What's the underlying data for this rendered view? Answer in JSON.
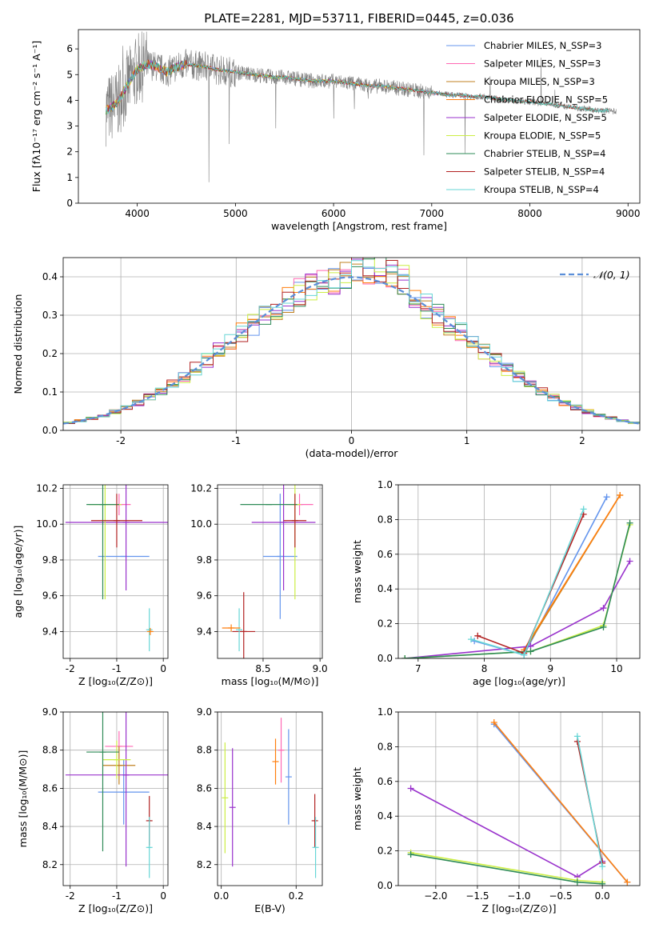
{
  "chart_data": [
    {
      "id": "spectrum",
      "type": "line",
      "title": "PLATE=2281, MJD=53711, FIBERID=0445, z=0.036",
      "xlabel": "wavelength [Angstrom, rest frame]",
      "ylabel": "Flux [fλ10⁻¹⁷ erg cm⁻² s⁻¹ A⁻¹]",
      "xlim": [
        3400,
        9120
      ],
      "ylim": [
        0,
        6.75
      ],
      "xticks": [
        4000,
        5000,
        6000,
        7000,
        8000,
        9000
      ],
      "yticks": [
        0,
        1,
        2,
        3,
        4,
        5,
        6
      ],
      "grid": false,
      "legend_position": "top-right",
      "data_series": {
        "name": "data",
        "color": "#808080",
        "x": [
          3680,
          3800,
          3900,
          4000,
          4100,
          4200,
          4300,
          4400,
          4500,
          4600,
          4700,
          4800,
          4900,
          5000,
          5100,
          5200,
          5300,
          5400,
          5500,
          5600,
          5700,
          5800,
          5900,
          6000,
          6100,
          6200,
          6300,
          6400,
          6500,
          6600,
          6700,
          6800,
          6900,
          7000,
          7100,
          7200,
          7300,
          7400,
          7500,
          7600,
          7700,
          7800,
          7900,
          8000,
          8100,
          8200,
          8300,
          8400,
          8500,
          8600,
          8700,
          8800,
          8880
        ],
        "y": [
          3.6,
          3.9,
          4.6,
          5.2,
          5.4,
          5.3,
          5.1,
          5.3,
          5.4,
          5.35,
          5.3,
          5.2,
          5.15,
          5.1,
          5.05,
          5.0,
          4.95,
          4.9,
          4.9,
          4.85,
          4.8,
          4.75,
          4.75,
          4.75,
          4.7,
          4.65,
          4.6,
          4.55,
          4.55,
          4.5,
          4.45,
          4.4,
          4.35,
          4.3,
          4.25,
          4.2,
          4.2,
          4.15,
          4.15,
          4.1,
          4.05,
          4.0,
          3.95,
          3.95,
          3.9,
          3.85,
          3.8,
          3.75,
          3.7,
          3.65,
          3.6,
          3.6,
          3.55
        ]
      },
      "series": [
        {
          "name": "Chabrier MILES, N_SSP=3",
          "color": "#6495ed",
          "xmax": 7420
        },
        {
          "name": "Salpeter MILES, N_SSP=3",
          "color": "#ff69b4",
          "xmax": 7420
        },
        {
          "name": "Kroupa MILES, N_SSP=3",
          "color": "#c08020",
          "xmax": 7420
        },
        {
          "name": "Chabrier ELODIE, N_SSP=5",
          "color": "#ff7f0e",
          "xmax": 6800
        },
        {
          "name": "Salpeter ELODIE, N_SSP=5",
          "color": "#9932cc",
          "xmax": 6800
        },
        {
          "name": "Kroupa ELODIE, N_SSP=5",
          "color": "#ccee44",
          "xmax": 6800
        },
        {
          "name": "Chabrier STELIB, N_SSP=4",
          "color": "#2e8b57",
          "xmax": 8800
        },
        {
          "name": "Salpeter STELIB, N_SSP=4",
          "color": "#b22222",
          "xmax": 8800
        },
        {
          "name": "Kroupa STELIB, N_SSP=4",
          "color": "#66d6d6",
          "xmax": 8800
        }
      ]
    },
    {
      "id": "residuals",
      "type": "bar",
      "xlabel": "(data-model)/error",
      "ylabel": "Normed distribution",
      "xlim": [
        -2.5,
        2.5
      ],
      "ylim": [
        0,
        0.45
      ],
      "xticks": [
        -2,
        -1,
        0,
        1,
        2
      ],
      "yticks": [
        0.0,
        0.1,
        0.2,
        0.3,
        0.4
      ],
      "grid": true,
      "legend_position": "top-right",
      "reference": {
        "name": "𝒩(0, 1)",
        "color": "#5b8fd9",
        "style": "dashed"
      },
      "bin_width": 0.1,
      "histogram_approx": true
    },
    {
      "id": "age_vs_Z",
      "type": "scatter",
      "xlabel": "Z [log₁₀(Z/Z⊙)]",
      "ylabel": "age  [log₁₀(age/yr)]",
      "xlim": [
        -2.15,
        0.1
      ],
      "ylim": [
        9.25,
        10.22
      ],
      "xticks": [
        -2,
        -1,
        0
      ],
      "yticks": [
        9.4,
        9.6,
        9.8,
        10.0,
        10.2
      ],
      "grid": true,
      "points": [
        {
          "model": "Chabrier MILES",
          "x": -0.85,
          "y": 9.82,
          "xerr": 0.55,
          "yerr": 0.0
        },
        {
          "model": "Salpeter MILES",
          "x": -0.95,
          "y": 10.11,
          "xerr": 0.25,
          "yerr": 0.06
        },
        {
          "model": "Salpeter ELODIE",
          "x": -0.8,
          "y": 10.01,
          "xerr": 1.3,
          "yerr": 0.38
        },
        {
          "model": "Kroupa ELODIE",
          "x": -1.25,
          "y": 10.11,
          "xerr": 0.35,
          "yerr": 0.53
        },
        {
          "model": "Chabrier STELIB",
          "x": -1.3,
          "y": 10.11,
          "xerr": 0.35,
          "yerr": 0.53
        },
        {
          "model": "Salpeter STELIB",
          "x": -1.0,
          "y": 10.02,
          "xerr": 0.55,
          "yerr": 0.15
        },
        {
          "model": "Kroupa STELIB",
          "x": -0.3,
          "y": 9.41,
          "xerr": 0.03,
          "yerr": 0.12
        },
        {
          "model": "Chabrier ELODIE",
          "x": -0.28,
          "y": 9.4,
          "xerr": 0.03,
          "yerr": 0.02
        }
      ]
    },
    {
      "id": "age_vs_mass",
      "type": "scatter",
      "xlabel": "mass [log₁₀(M/M⊙)]",
      "ylabel": "",
      "xlim": [
        8.1,
        9.02
      ],
      "ylim": [
        9.25,
        10.22
      ],
      "xticks": [
        8.5,
        9.0
      ],
      "yticks": [
        9.4,
        9.6,
        9.8,
        10.0,
        10.2
      ],
      "grid": true,
      "points": [
        {
          "model": "Chabrier MILES",
          "x": 8.65,
          "y": 9.82,
          "xerr": 0.15,
          "yerr": 0.35
        },
        {
          "model": "Salpeter MILES",
          "x": 8.82,
          "y": 10.11,
          "xerr": 0.12,
          "yerr": 0.06
        },
        {
          "model": "Salpeter ELODIE",
          "x": 8.68,
          "y": 10.01,
          "xerr": 0.28,
          "yerr": 0.38
        },
        {
          "model": "Kroupa ELODIE",
          "x": 8.78,
          "y": 10.11,
          "xerr": 0.05,
          "yerr": 0.53
        },
        {
          "model": "Chabrier STELIB",
          "x": 8.55,
          "y": 10.11,
          "xerr": 0.25,
          "yerr": 0.0
        },
        {
          "model": "Salpeter STELIB",
          "x": 8.78,
          "y": 10.02,
          "xerr": 0.1,
          "yerr": 0.15
        },
        {
          "model": "Salpeter STELIB (low)",
          "x": 8.33,
          "y": 9.4,
          "xerr": 0.1,
          "yerr": 0.22
        },
        {
          "model": "Kroupa STELIB",
          "x": 8.29,
          "y": 9.41,
          "xerr": 0.0,
          "yerr": 0.12
        },
        {
          "model": "Chabrier ELODIE",
          "x": 8.22,
          "y": 9.42,
          "xerr": 0.08,
          "yerr": 0.02
        }
      ]
    },
    {
      "id": "massweight_vs_age",
      "type": "line",
      "xlabel": "age  [log₁₀(age/yr)]",
      "ylabel": "mass weight",
      "xlim": [
        6.7,
        10.35
      ],
      "ylim": [
        0,
        1.0
      ],
      "xticks": [
        7,
        8,
        9,
        10
      ],
      "yticks": [
        0.0,
        0.2,
        0.4,
        0.6,
        0.8,
        1.0
      ],
      "grid": true,
      "series": [
        {
          "model": "Chabrier MILES",
          "x": [
            7.85,
            8.6,
            9.85
          ],
          "y": [
            0.1,
            0.02,
            0.93
          ]
        },
        {
          "model": "Kroupa MILES",
          "x": [
            8.6,
            10.05
          ],
          "y": [
            0.04,
            0.94
          ]
        },
        {
          "model": "Chabrier ELODIE",
          "x": [
            8.6,
            10.05
          ],
          "y": [
            0.05,
            0.94
          ]
        },
        {
          "model": "Salpeter ELODIE",
          "x": [
            6.8,
            8.7,
            9.8,
            10.2
          ],
          "y": [
            0.0,
            0.07,
            0.29,
            0.56
          ]
        },
        {
          "model": "Kroupa ELODIE",
          "x": [
            6.8,
            8.7,
            9.8,
            10.2
          ],
          "y": [
            0.0,
            0.04,
            0.19,
            0.77
          ]
        },
        {
          "model": "Chabrier STELIB",
          "x": [
            6.8,
            8.7,
            9.8,
            10.2
          ],
          "y": [
            0.0,
            0.04,
            0.18,
            0.78
          ]
        },
        {
          "model": "Salpeter STELIB",
          "x": [
            7.9,
            8.6,
            9.5
          ],
          "y": [
            0.13,
            0.03,
            0.83
          ]
        },
        {
          "model": "Kroupa STELIB",
          "x": [
            7.8,
            8.6,
            9.5
          ],
          "y": [
            0.11,
            0.02,
            0.86
          ]
        }
      ]
    },
    {
      "id": "mass_vs_Z",
      "type": "scatter",
      "xlabel": "Z [log₁₀(Z/Z⊙)]",
      "ylabel": "mass [log₁₀(M/M⊙)]",
      "xlim": [
        -2.15,
        0.1
      ],
      "ylim": [
        8.09,
        9.0
      ],
      "xticks": [
        -2,
        -1,
        0
      ],
      "yticks": [
        8.2,
        8.4,
        8.6,
        8.8,
        9.0
      ],
      "grid": true,
      "points": [
        {
          "model": "Chabrier MILES",
          "x": -0.85,
          "y": 8.58,
          "xerr": 0.55,
          "yerr": 0.17
        },
        {
          "model": "Salpeter MILES",
          "x": -0.95,
          "y": 8.82,
          "xerr": 0.3,
          "yerr": 0.08
        },
        {
          "model": "Kroupa MILES",
          "x": -0.95,
          "y": 8.72,
          "xerr": 0.35,
          "yerr": 0.1
        },
        {
          "model": "Salpeter ELODIE",
          "x": -0.8,
          "y": 8.67,
          "xerr": 1.3,
          "yerr": 0.48
        },
        {
          "model": "Kroupa ELODIE",
          "x": -1.0,
          "y": 8.75,
          "xerr": 0.3,
          "yerr": 0.1
        },
        {
          "model": "Chabrier STELIB",
          "x": -1.3,
          "y": 8.79,
          "xerr": 0.35,
          "yerr": 0.52
        },
        {
          "model": "Salpeter STELIB",
          "x": -0.3,
          "y": 8.43,
          "xerr": 0.03,
          "yerr": 0.13
        },
        {
          "model": "Kroupa STELIB",
          "x": -0.3,
          "y": 8.29,
          "xerr": 0.03,
          "yerr": 0.16
        }
      ]
    },
    {
      "id": "mass_vs_EBV",
      "type": "scatter",
      "xlabel": "E(B-V)",
      "ylabel": "",
      "xlim": [
        -0.01,
        0.27
      ],
      "ylim": [
        8.09,
        9.0
      ],
      "xticks": [
        0.0,
        0.2
      ],
      "yticks": [
        8.2,
        8.4,
        8.6,
        8.8,
        9.0
      ],
      "grid": true,
      "points": [
        {
          "model": "Kroupa ELODIE",
          "x": 0.01,
          "y": 8.55,
          "yerr": 0.29
        },
        {
          "model": "Salpeter ELODIE",
          "x": 0.03,
          "y": 8.5,
          "yerr": 0.31
        },
        {
          "model": "Chabrier ELODIE",
          "x": 0.145,
          "y": 8.74,
          "yerr": 0.12
        },
        {
          "model": "Salpeter MILES",
          "x": 0.16,
          "y": 8.8,
          "yerr": 0.17
        },
        {
          "model": "Chabrier MILES",
          "x": 0.18,
          "y": 8.66,
          "yerr": 0.25
        },
        {
          "model": "Salpeter STELIB",
          "x": 0.25,
          "y": 8.43,
          "yerr": 0.14
        },
        {
          "model": "Kroupa STELIB",
          "x": 0.252,
          "y": 8.29,
          "yerr": 0.16
        }
      ]
    },
    {
      "id": "massweight_vs_Z",
      "type": "line",
      "xlabel": "Z [log₁₀(Z/Z⊙)]",
      "ylabel": "mass weight",
      "xlim": [
        -2.45,
        0.45
      ],
      "ylim": [
        0,
        1.0
      ],
      "xticks": [
        -2.0,
        -1.5,
        -1.0,
        -0.5,
        0.0
      ],
      "yticks": [
        0.0,
        0.2,
        0.4,
        0.6,
        0.8,
        1.0
      ],
      "grid": true,
      "series": [
        {
          "model": "Chabrier MILES",
          "x": [
            -1.3,
            0.3
          ],
          "y": [
            0.93,
            0.02
          ]
        },
        {
          "model": "Chabrier ELODIE",
          "x": [
            -1.3,
            0.3
          ],
          "y": [
            0.94,
            0.02
          ]
        },
        {
          "model": "Salpeter ELODIE",
          "x": [
            -2.3,
            -0.3,
            0.0
          ],
          "y": [
            0.56,
            0.05,
            0.14
          ]
        },
        {
          "model": "Kroupa ELODIE",
          "x": [
            -2.3,
            -0.3,
            0.0
          ],
          "y": [
            0.19,
            0.03,
            0.02
          ]
        },
        {
          "model": "Chabrier STELIB",
          "x": [
            -2.3,
            -0.3,
            0.0
          ],
          "y": [
            0.18,
            0.02,
            0.01
          ]
        },
        {
          "model": "Salpeter STELIB",
          "x": [
            -0.3,
            0.0
          ],
          "y": [
            0.83,
            0.13
          ]
        },
        {
          "model": "Kroupa STELIB",
          "x": [
            -0.3,
            0.0
          ],
          "y": [
            0.86,
            0.11
          ]
        }
      ]
    }
  ],
  "colors": {
    "Chabrier MILES": "#6495ed",
    "Salpeter MILES": "#ff69b4",
    "Kroupa MILES": "#c08020",
    "Chabrier ELODIE": "#ff7f0e",
    "Salpeter ELODIE": "#9932cc",
    "Kroupa ELODIE": "#ccee44",
    "Chabrier STELIB": "#2e8b57",
    "Salpeter STELIB": "#b22222",
    "Salpeter STELIB (low)": "#b22222",
    "Kroupa STELIB": "#66d6d6"
  }
}
